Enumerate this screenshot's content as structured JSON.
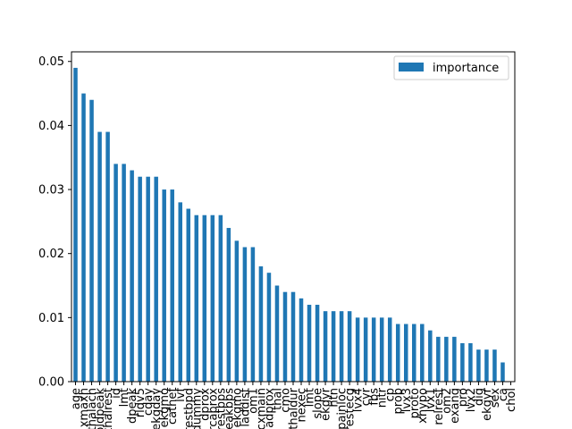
{
  "chart_data": {
    "type": "bar",
    "categories": [
      "age",
      "xmaxh",
      "thalach",
      "oldpeak",
      "thalrest",
      "id",
      "lmt",
      "dpeak",
      "rldv5",
      "cday",
      "ekgday",
      "ekgmo",
      "cathef",
      "lvf",
      "restbpd",
      "dummy",
      "dprox",
      "rcaprox",
      "restbps",
      "tpeakbps",
      "ekgmo2",
      "laddist",
      "om1",
      "cxmain",
      "ladprox",
      "thal",
      "cmo",
      "thaldur",
      "nexec",
      "lmt2",
      "slope",
      "ekgyr",
      "htn",
      "painloc",
      "restecg",
      "lvx4",
      "cyr",
      "fbs",
      "nitr",
      "cp",
      "prop",
      "lvx3",
      "proto",
      "xhypo",
      "lvx1",
      "relrest",
      "om2",
      "exang",
      "pro",
      "lvx2",
      "dig",
      "ekgyr2",
      "sex",
      "ca",
      "chol"
    ],
    "category_labels": [
      "age",
      "xmaxh",
      "thalach",
      "oldpeak",
      "thalrest",
      "id",
      "lmt",
      "dpeak",
      "rldv5",
      "cday",
      "ekgday",
      "ekgmo",
      "cathef",
      "lvf",
      "restbpd",
      "dummy",
      "dprox",
      "rcaprox",
      "restbps",
      "tpeakbps",
      "ekgmo",
      "laddist",
      "om1",
      "cxmain",
      "ladprox",
      "thal",
      "cmo",
      "thaldur",
      "nexec",
      "lmt",
      "slope",
      "ekgyr",
      "htn",
      "painloc",
      "restecg",
      "lvx4",
      "cyr",
      "fbs",
      "nitr",
      "cp",
      "prop",
      "lvx3",
      "proto",
      "xhypo",
      "lvx1",
      "relrest",
      "om2",
      "exang",
      "pro",
      "lvx2",
      "dig",
      "ekgyr",
      "sex",
      "ca",
      "chol"
    ],
    "series": [
      {
        "name": "importance",
        "color": "#1f77b4",
        "values": [
          0.049,
          0.045,
          0.044,
          0.039,
          0.039,
          0.034,
          0.034,
          0.033,
          0.032,
          0.032,
          0.032,
          0.03,
          0.03,
          0.028,
          0.027,
          0.026,
          0.026,
          0.026,
          0.026,
          0.024,
          0.022,
          0.021,
          0.021,
          0.018,
          0.017,
          0.015,
          0.014,
          0.014,
          0.013,
          0.012,
          0.012,
          0.011,
          0.011,
          0.011,
          0.011,
          0.01,
          0.01,
          0.01,
          0.01,
          0.01,
          0.009,
          0.009,
          0.009,
          0.009,
          0.008,
          0.007,
          0.007,
          0.007,
          0.006,
          0.006,
          0.005,
          0.005,
          0.005,
          0.003,
          0.0
        ]
      }
    ],
    "yticks": [
      "0.00",
      "0.01",
      "0.02",
      "0.03",
      "0.04",
      "0.05"
    ],
    "ylim": [
      0,
      0.0515
    ],
    "legend_position": "top-right",
    "grid": false
  }
}
